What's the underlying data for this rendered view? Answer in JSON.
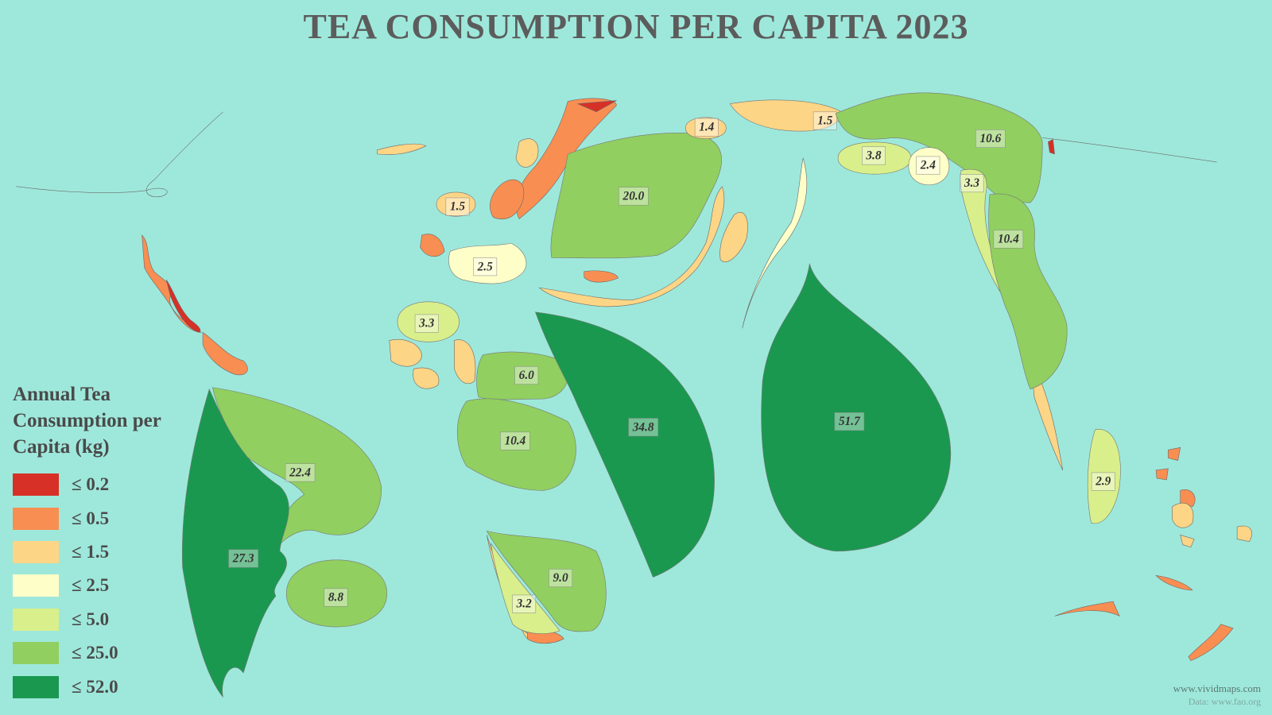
{
  "title": "TEA CONSUMPTION PER CAPITA 2023",
  "legend": {
    "title": "Annual Tea Consumption per Capita (kg)",
    "items": [
      {
        "value": 0.2,
        "label": "≤ 0.2",
        "color": "#d73027"
      },
      {
        "value": 0.5,
        "label": "≤ 0.5",
        "color": "#f98e52"
      },
      {
        "value": 1.5,
        "label": "≤ 1.5",
        "color": "#fdd586"
      },
      {
        "value": 2.5,
        "label": "≤ 2.5",
        "color": "#fefec8"
      },
      {
        "value": 5.0,
        "label": "≤ 5.0",
        "color": "#d9ef8b"
      },
      {
        "value": 25.0,
        "label": "≤ 25.0",
        "color": "#91cf60"
      },
      {
        "value": 52.0,
        "label": "≤ 52.0",
        "color": "#1a9850"
      }
    ]
  },
  "regions": [
    {
      "value": 20.0,
      "label": "20.0"
    },
    {
      "value": 1.4,
      "label": "1.4"
    },
    {
      "value": 1.5,
      "label": "1.5"
    },
    {
      "value": 10.6,
      "label": "10.6"
    },
    {
      "value": 3.8,
      "label": "3.8"
    },
    {
      "value": 2.4,
      "label": "2.4"
    },
    {
      "value": 3.3,
      "label": "3.3"
    },
    {
      "value": 10.4,
      "label": "10.4"
    },
    {
      "value": 1.5,
      "label": "1.5"
    },
    {
      "value": 2.5,
      "label": "2.5"
    },
    {
      "value": 3.3,
      "label": "3.3"
    },
    {
      "value": 6.0,
      "label": "6.0"
    },
    {
      "value": 34.8,
      "label": "34.8"
    },
    {
      "value": 51.7,
      "label": "51.7"
    },
    {
      "value": 10.4,
      "label": "10.4"
    },
    {
      "value": 22.4,
      "label": "22.4"
    },
    {
      "value": 27.3,
      "label": "27.3"
    },
    {
      "value": 8.8,
      "label": "8.8"
    },
    {
      "value": 9.0,
      "label": "9.0"
    },
    {
      "value": 3.2,
      "label": "3.2"
    },
    {
      "value": 2.9,
      "label": "2.9"
    }
  ],
  "credit": {
    "site": "www.vividmaps.com",
    "source": "Data: www.fao.org"
  }
}
